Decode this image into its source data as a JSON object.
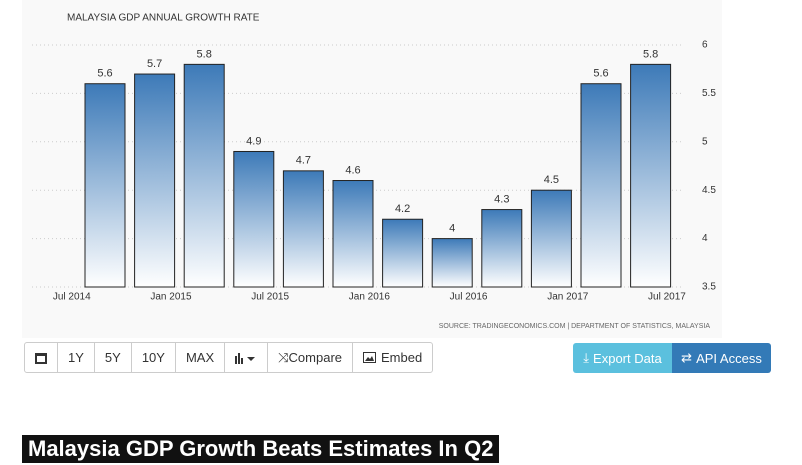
{
  "chart_data": {
    "type": "bar",
    "title": "MALAYSIA GDP ANNUAL GROWTH RATE",
    "categories": [
      null,
      null,
      null,
      null,
      null,
      null,
      null,
      null,
      null,
      null,
      null,
      null
    ],
    "values": [
      5.6,
      5.7,
      5.8,
      4.9,
      4.7,
      4.6,
      4.2,
      4,
      4.3,
      4.5,
      5.6,
      5.8
    ],
    "xtick_labels": [
      "Jul 2014",
      "Jan 2015",
      "Jul 2015",
      "Jan 2016",
      "Jul 2016",
      "Jan 2017",
      "Jul 2017"
    ],
    "color": "#3d7ab8",
    "ylim": [
      3.5,
      6
    ],
    "yticks": [
      3.5,
      4,
      4.5,
      5,
      5.5,
      6
    ],
    "grid": true,
    "source": "SOURCE: TRADINGECONOMICS.COM | DEPARTMENT OF STATISTICS, MALAYSIA"
  },
  "toolbar": {
    "buttons": [
      "1Y",
      "5Y",
      "10Y",
      "MAX",
      "Compare",
      "Embed"
    ],
    "actions": [
      "Export Data",
      "API Access"
    ]
  },
  "headline": "Malaysia GDP Growth Beats Estimates In Q2"
}
